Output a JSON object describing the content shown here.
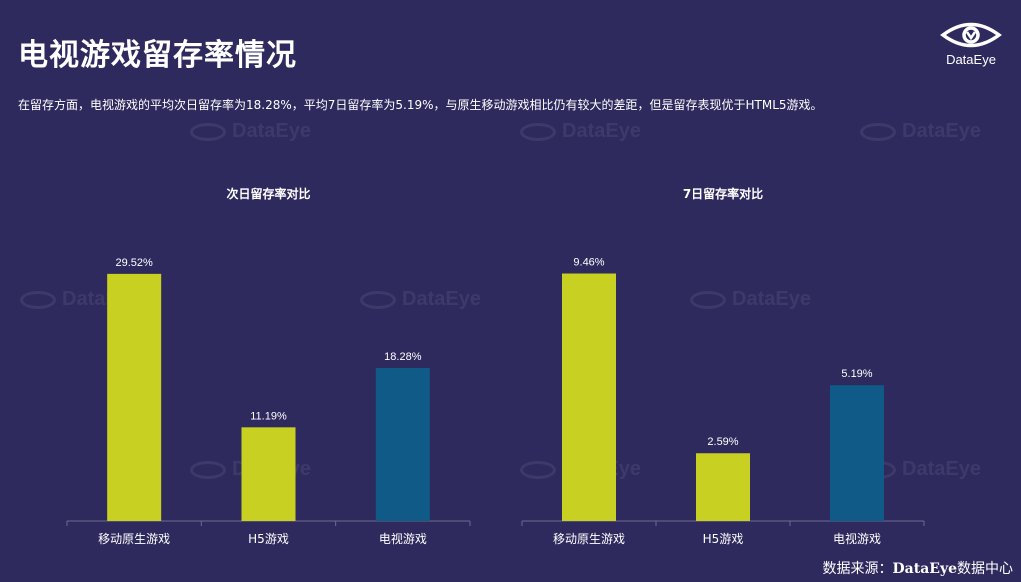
{
  "page": {
    "title": "电视游戏留存率情况",
    "subtitle": "在留存方面，电视游戏的平均次日留存率为18.28%，平均7日留存率为5.19%，与原生移动游戏相比仍有较大的差距，但是留存表现优于HTML5游戏。",
    "logo_text": "DataEye",
    "watermark_text": "DataEye",
    "source_prefix": "数据来源：",
    "source_brand": "DataEye",
    "source_suffix": "数据中心"
  },
  "colors": {
    "background": "#2f2a5e",
    "bar_default": "#c8d122",
    "bar_highlight": "#0f5a87",
    "axis": "#6e6a92"
  },
  "chart_data": [
    {
      "type": "bar",
      "title": "次日留存率对比",
      "categories": [
        "移动原生游戏",
        "H5游戏",
        "电视游戏"
      ],
      "values": [
        29.52,
        11.19,
        18.28
      ],
      "value_labels": [
        "29.52%",
        "11.19%",
        "18.28%"
      ],
      "bar_colors": [
        "#c8d122",
        "#c8d122",
        "#0f5a87"
      ],
      "ylim": [
        0,
        35
      ],
      "grid": false,
      "legend": "none"
    },
    {
      "type": "bar",
      "title": "7日留存率对比",
      "categories": [
        "移动原生游戏",
        "H5游戏",
        "电视游戏"
      ],
      "values": [
        9.46,
        2.59,
        5.19
      ],
      "value_labels": [
        "9.46%",
        "2.59%",
        "5.19%"
      ],
      "bar_colors": [
        "#c8d122",
        "#c8d122",
        "#0f5a87"
      ],
      "ylim": [
        0,
        11.2
      ],
      "grid": false,
      "legend": "none"
    }
  ]
}
